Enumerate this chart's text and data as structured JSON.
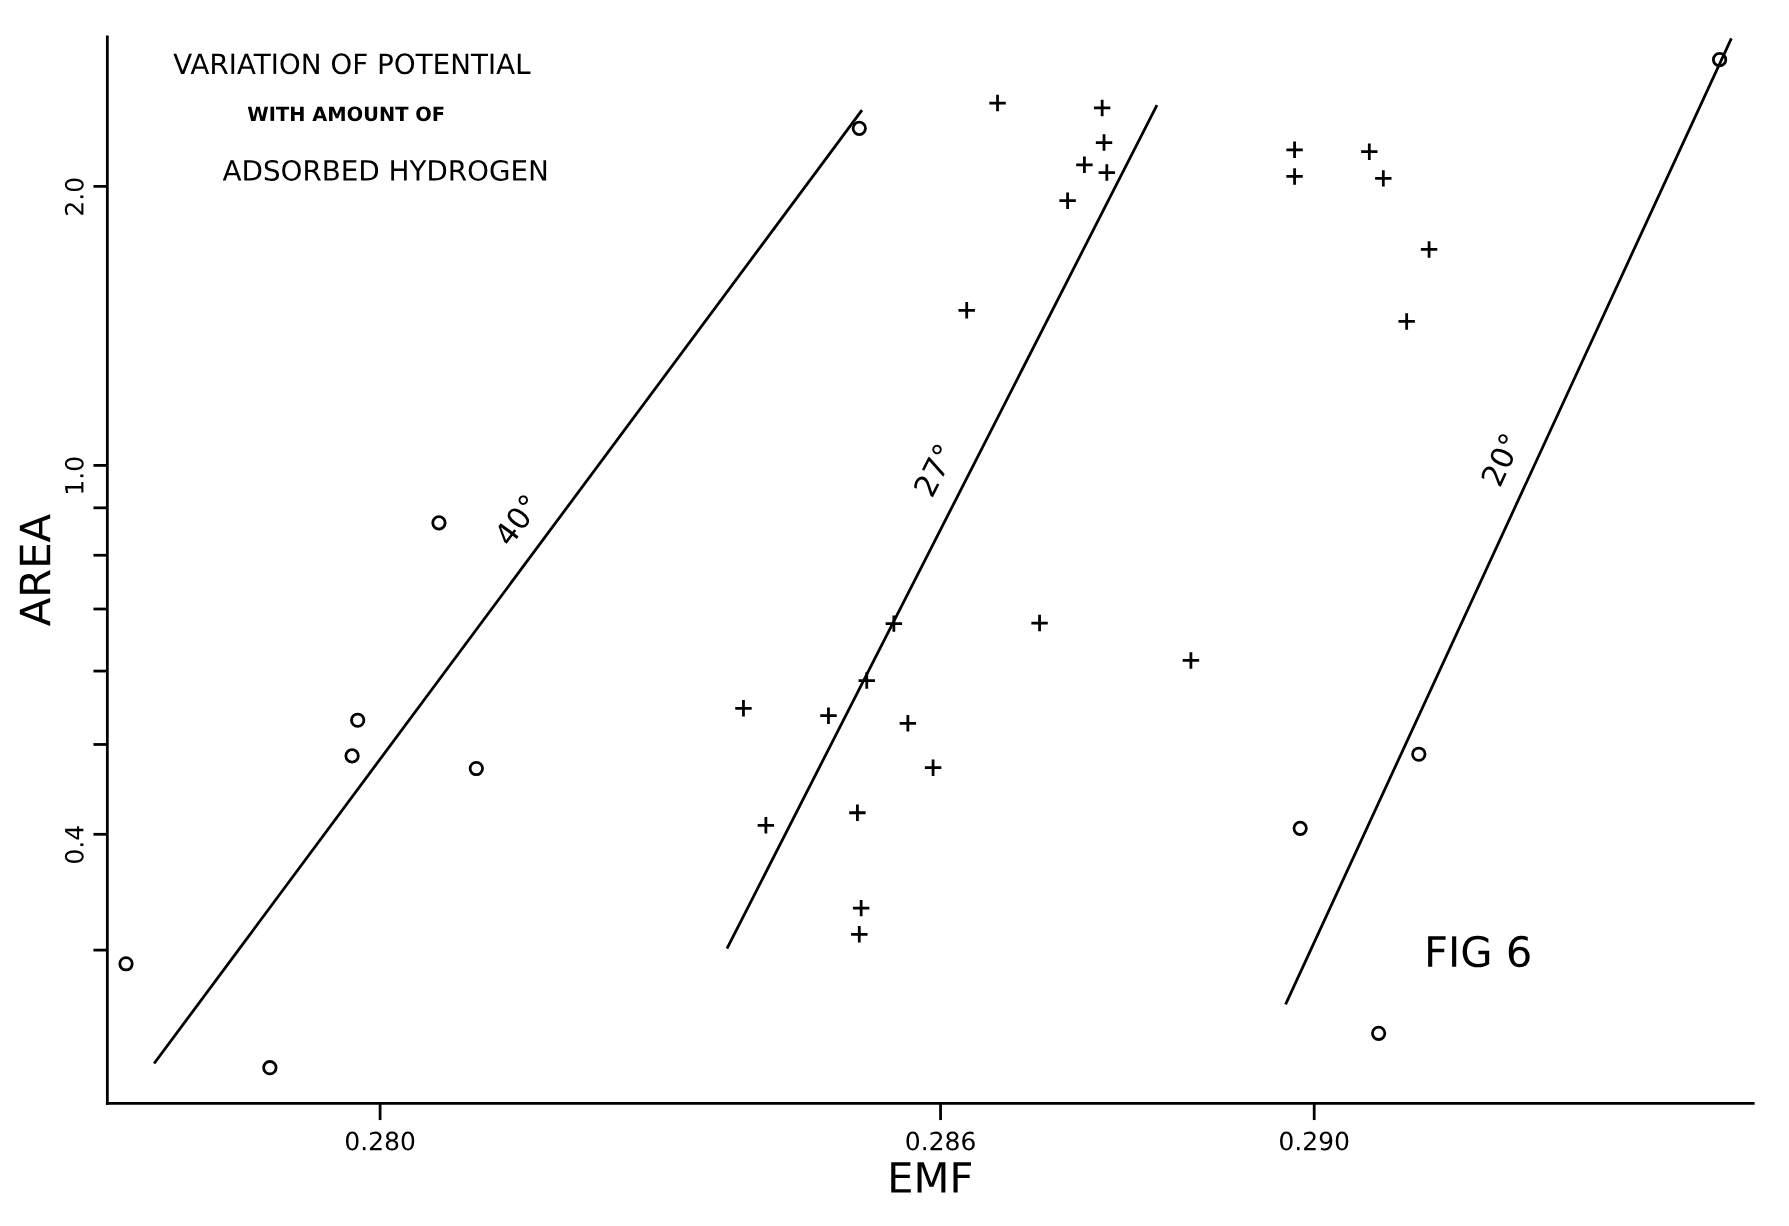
{
  "chart_data": {
    "type": "scatter",
    "title": "VARIATION OF POTENTIAL",
    "subtitle": "WITH AMOUNT OF\nADSORBED HYDROGEN",
    "xlabel": "EMF",
    "ylabel": "AREA",
    "log": "y",
    "grid": false,
    "legend": false,
    "xlim": [
      0.27708,
      0.2947
    ],
    "ylim": [
      0.205,
      2.9
    ],
    "xticks": [
      {
        "value": 0.28,
        "label": "0.280"
      },
      {
        "value": 0.286,
        "label": "0.286"
      },
      {
        "value": 0.29,
        "label": "0.290"
      }
    ],
    "yticks": [
      {
        "value": 0.3,
        "label": null
      },
      {
        "value": 0.4,
        "label": "0.4"
      },
      {
        "value": 0.5,
        "label": null
      },
      {
        "value": 0.6,
        "label": null
      },
      {
        "value": 0.7,
        "label": null
      },
      {
        "value": 0.8,
        "label": null
      },
      {
        "value": 0.9,
        "label": null
      },
      {
        "value": 1.0,
        "label": "1.0"
      },
      {
        "value": 2.0,
        "label": "2.0"
      }
    ],
    "annotations": [
      "FIG 6"
    ],
    "series": [
      {
        "marker": "circle",
        "color": "#000000",
        "x": [
          0.28513,
          0.28063,
          0.27976,
          0.2797,
          0.28103,
          0.27728,
          0.27882
        ],
        "values": [
          2.31,
          0.867,
          0.531,
          0.486,
          0.471,
          0.29,
          0.224
        ]
      },
      {
        "marker": "cross",
        "color": "#000000",
        "x": [
          0.28661,
          0.28773,
          0.28775,
          0.28754,
          0.28778,
          0.28736,
          0.28628,
          0.28706,
          0.2855,
          0.28868,
          0.28521,
          0.28389,
          0.2848,
          0.28565,
          0.28592,
          0.28413,
          0.28511,
          0.28515,
          0.28513
        ],
        "values": [
          2.46,
          2.43,
          2.23,
          2.11,
          2.07,
          1.93,
          1.47,
          0.676,
          0.675,
          0.616,
          0.586,
          0.547,
          0.537,
          0.527,
          0.472,
          0.409,
          0.422,
          0.333,
          0.312
        ]
      },
      {
        "marker": "cross",
        "color": "#000000",
        "x": [
          0.28979,
          0.29059,
          0.28979,
          0.29074,
          0.29123,
          0.29099
        ],
        "values": [
          2.19,
          2.18,
          2.05,
          2.04,
          1.71,
          1.43
        ]
      },
      {
        "marker": "circle",
        "color": "#000000",
        "x": [
          0.29434,
          0.29112,
          0.28985,
          0.29069
        ],
        "values": [
          2.74,
          0.488,
          0.406,
          0.244
        ]
      },
      {
        "type": "line",
        "name": "40°",
        "marker": "none",
        "color": "#000000",
        "x": [
          0.27759,
          0.28515
        ],
        "values": [
          0.227,
          2.41
        ]
      },
      {
        "type": "line",
        "name": "27°",
        "marker": "none",
        "color": "#000000",
        "x": [
          0.28372,
          0.28831
        ],
        "values": [
          0.302,
          2.44
        ]
      },
      {
        "type": "line",
        "name": "20°",
        "marker": "none",
        "color": "#000000",
        "x": [
          0.2897,
          0.29446
        ],
        "values": [
          0.263,
          2.88
        ]
      }
    ]
  }
}
